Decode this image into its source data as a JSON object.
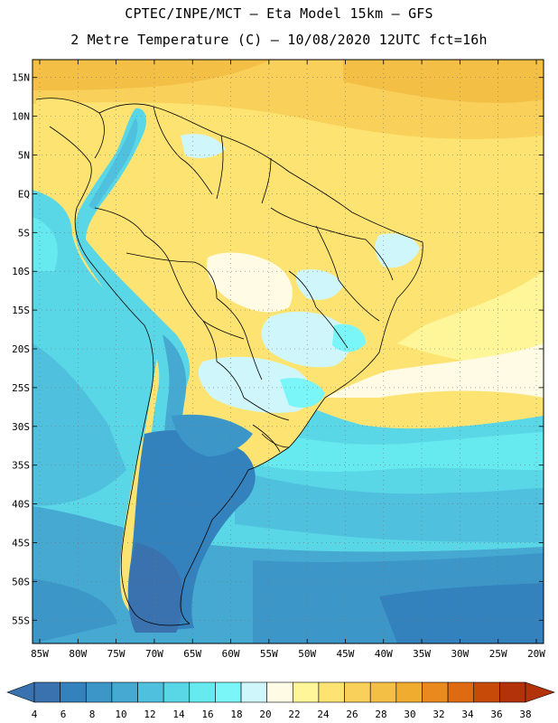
{
  "header": {
    "title_line1": "CPTEC/INPE/MCT –  Eta Model 15km – GFS",
    "title_line2": "2 Metre Temperature (C) – 10/08/2020 12UTC fct=16h"
  },
  "map": {
    "lat_labels": [
      "15N",
      "10N",
      "5N",
      "EQ",
      "5S",
      "10S",
      "15S",
      "20S",
      "25S",
      "30S",
      "35S",
      "40S",
      "45S",
      "50S",
      "55S"
    ],
    "lon_labels": [
      "85W",
      "80W",
      "75W",
      "70W",
      "65W",
      "60W",
      "55W",
      "50W",
      "45W",
      "40W",
      "35W",
      "30W",
      "25W",
      "20W"
    ]
  },
  "colorbar": {
    "ticks": [
      "4",
      "6",
      "8",
      "10",
      "12",
      "14",
      "16",
      "18",
      "20",
      "22",
      "24",
      "26",
      "28",
      "30",
      "32",
      "34",
      "36",
      "38"
    ],
    "colors": [
      "#3a72b0",
      "#3381bd",
      "#3c97c8",
      "#45a9d2",
      "#4fc1de",
      "#5ad7e6",
      "#66e9ef",
      "#7bf6f8",
      "#cff7fb",
      "#fffbe4",
      "#fff599",
      "#fde472",
      "#f8d05a",
      "#f3bf45",
      "#efac2e",
      "#e9891e",
      "#e06a12",
      "#c84a08",
      "#b4320a",
      "#7a78c0"
    ]
  }
}
